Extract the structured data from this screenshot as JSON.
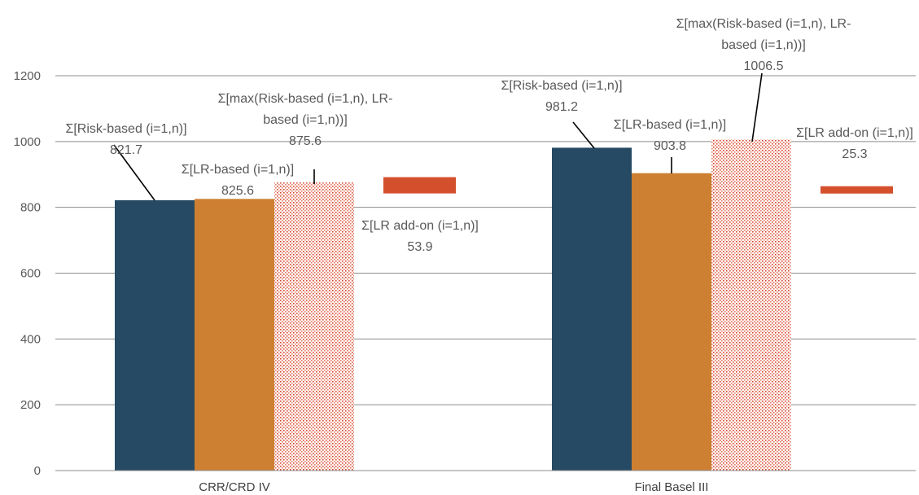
{
  "chart_data": {
    "type": "bar",
    "categories": [
      "CRR/CRD IV",
      "Final Basel III"
    ],
    "ylim": [
      0,
      1200
    ],
    "yticks": [
      0,
      200,
      400,
      600,
      800,
      1000,
      1200
    ],
    "grid": true,
    "series": [
      {
        "key": "risk",
        "values": [
          821.7,
          981.2
        ],
        "color": "#264a63",
        "pattern": "solid"
      },
      {
        "key": "lr",
        "values": [
          825.6,
          903.8
        ],
        "color": "#cd7f32",
        "pattern": "solid"
      },
      {
        "key": "max",
        "values": [
          875.6,
          1006.5
        ],
        "color": "#d9442b",
        "pattern": "dots"
      },
      {
        "key": "addon",
        "values": [
          53.9,
          25.3
        ],
        "color": "#d4502d",
        "pattern": "floating-marker",
        "marker_level": [
          867,
          853
        ]
      }
    ],
    "labels": [
      [
        {
          "lines": [
            "Σ[Risk-based (i=1,n)]",
            "821.7"
          ]
        },
        {
          "lines": [
            "Σ[LR-based (i=1,n)]",
            "825.6"
          ]
        },
        {
          "lines": [
            "Σ[max(Risk-based (i=1,n), LR-",
            "based (i=1,n))]",
            "875.6"
          ]
        },
        {
          "lines": [
            "Σ[LR add-on (i=1,n)]",
            "53.9"
          ]
        }
      ],
      [
        {
          "lines": [
            "Σ[Risk-based (i=1,n)]",
            "981.2"
          ]
        },
        {
          "lines": [
            "Σ[LR-based (i=1,n)]",
            "903.8"
          ]
        },
        {
          "lines": [
            "Σ[max(Risk-based (i=1,n), LR-",
            "based (i=1,n))]",
            "1006.5"
          ]
        },
        {
          "lines": [
            "Σ[LR add-on (i=1,n)]",
            "25.3"
          ]
        }
      ]
    ]
  }
}
